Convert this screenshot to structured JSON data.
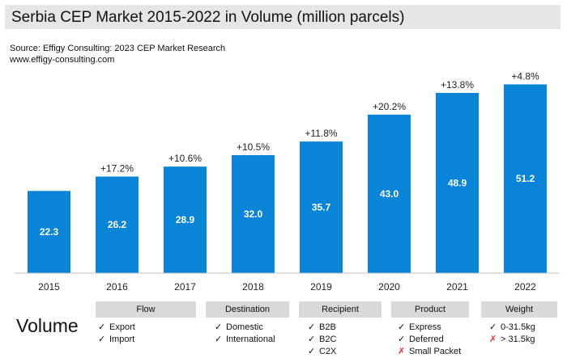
{
  "header": {
    "title": "Serbia CEP Market 2015-2022 in Volume (million parcels)",
    "source_line1": "Source: Effigy Consulting: 2023 CEP Market Research",
    "source_line2": "www.effigy-consulting.com"
  },
  "colors": {
    "bar": "#0a84d6",
    "axis": "#bfbfbf",
    "legend_bg": "#d9d9d9",
    "title_bg": "#e6e6e6",
    "cross": "#e23030"
  },
  "chart_data": {
    "type": "bar",
    "title": "Serbia CEP Market 2015-2022 in Volume (million parcels)",
    "categories": [
      "2015",
      "2016",
      "2017",
      "2018",
      "2019",
      "2020",
      "2021",
      "2022"
    ],
    "values": [
      22.3,
      26.2,
      28.9,
      32.0,
      35.7,
      43.0,
      48.9,
      51.2
    ],
    "value_labels": [
      "22.3",
      "26.2",
      "28.9",
      "32.0",
      "35.7",
      "43.0",
      "48.9",
      "51.2"
    ],
    "growth_labels": [
      "",
      "+17.2%",
      "+10.6%",
      "+10.5%",
      "+11.8%",
      "+20.2%",
      "+13.8%",
      "+4.8%"
    ],
    "xlabel": "",
    "ylabel": "",
    "ylim": [
      0,
      57
    ],
    "grid": false,
    "legend": "none"
  },
  "legend": {
    "label": "Volume",
    "groups": [
      {
        "title": "Flow",
        "items": [
          {
            "mark": "✓",
            "text": "Export"
          },
          {
            "mark": "✓",
            "text": "Import"
          }
        ]
      },
      {
        "title": "Destination",
        "items": [
          {
            "mark": "✓",
            "text": "Domestic"
          },
          {
            "mark": "✓",
            "text": "International"
          }
        ]
      },
      {
        "title": "Recipient",
        "items": [
          {
            "mark": "✓",
            "text": "B2B"
          },
          {
            "mark": "✓",
            "text": "B2C"
          },
          {
            "mark": "✓",
            "text": "C2X"
          }
        ]
      },
      {
        "title": "Product",
        "items": [
          {
            "mark": "✓",
            "text": "Express"
          },
          {
            "mark": "✓",
            "text": "Deferred"
          },
          {
            "mark": "✗",
            "text": "Small Packet"
          }
        ]
      },
      {
        "title": "Weight",
        "items": [
          {
            "mark": "✓",
            "text": "0-31.5kg"
          },
          {
            "mark": "✗",
            "text": "> 31.5kg"
          }
        ]
      }
    ]
  }
}
